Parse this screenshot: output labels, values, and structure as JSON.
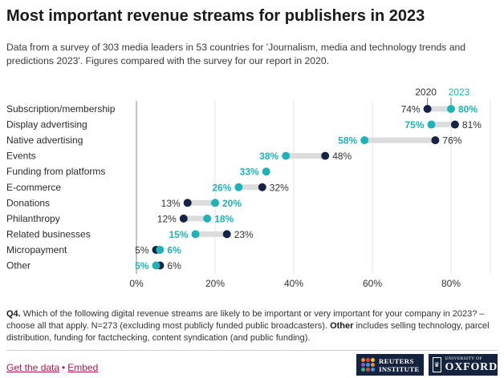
{
  "header": {
    "title": "Most important revenue streams for publishers in 2023",
    "subtitle": "Data from a survey of 303 media leaders in 53 countries for 'Journalism, media and technology trends and predictions 2023'. Figures compared with the survey for our report in 2020."
  },
  "chart_data": {
    "type": "dot-range",
    "series": [
      {
        "name": "2020",
        "color": "#152344"
      },
      {
        "name": "2023",
        "color": "#1fb2b6"
      }
    ],
    "categories": [
      "Subscription/membership",
      "Display advertising",
      "Native advertising",
      "Events",
      "Funding from platforms",
      "E-commerce",
      "Donations",
      "Philanthropy",
      "Related businesses",
      "Micropayment",
      "Other"
    ],
    "values_2020": [
      74,
      81,
      76,
      48,
      null,
      32,
      13,
      12,
      23,
      5,
      6
    ],
    "values_2023": [
      80,
      75,
      58,
      38,
      33,
      26,
      20,
      18,
      15,
      6,
      5
    ],
    "value_labels_2020": [
      "74%",
      "81%",
      "76%",
      "48%",
      "",
      "32%",
      "13%",
      "12%",
      "23%",
      "5%",
      "6%"
    ],
    "value_labels_2023": [
      "80%",
      "75%",
      "58%",
      "38%",
      "33%",
      "26%",
      "20%",
      "18%",
      "15%",
      "6%",
      "5%"
    ],
    "x_ticks": [
      0,
      20,
      40,
      60,
      80
    ],
    "x_tick_labels": [
      "0%",
      "20%",
      "40%",
      "60%",
      "80%"
    ],
    "xlim": [
      0,
      90
    ],
    "grid": true,
    "legend_placement": "top-right"
  },
  "footnote": {
    "q_label": "Q4.",
    "text_before": "Which of the following digital revenue streams are likely to be important or very important for your company in 2023? – choose all that apply. N=273 (excluding most publicly funded public broadcasters).",
    "bold_term": "Other",
    "text_after": "includes selling technology, parcel distribution, funding for factchecking, content syndication (and public funding)."
  },
  "footer": {
    "get_data_label": "Get the data",
    "separator": "•",
    "embed_label": "Embed",
    "reuters_line1": "REUTERS",
    "reuters_line2": "INSTITUTE",
    "oxford_line1": "UNIVERSITY OF",
    "oxford_line2": "OXFORD"
  }
}
